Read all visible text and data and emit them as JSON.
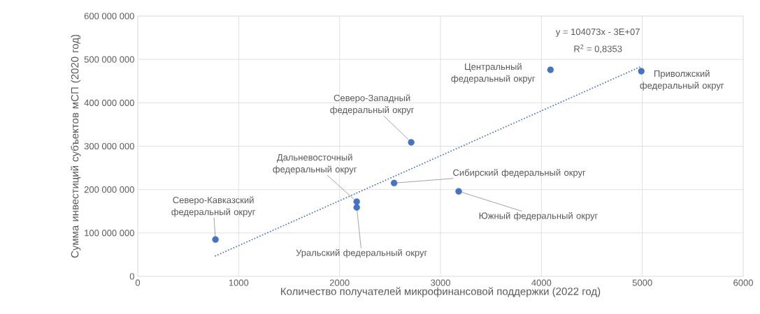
{
  "chart_data": {
    "type": "scatter",
    "xlabel": "Количество получателей микрофинансовой поддержки (2022 год)",
    "ylabel": "Сумма инвестиций субъектов мСП (2020 год)",
    "xlim": [
      0,
      6000
    ],
    "xticks": [
      0,
      1000,
      2000,
      3000,
      4000,
      5000,
      6000
    ],
    "ylim": [
      0,
      600000000
    ],
    "yticks": [
      {
        "value": 0,
        "label": "0"
      },
      {
        "value": 100000000,
        "label": "100 000 000"
      },
      {
        "value": 200000000,
        "label": "200 000 000"
      },
      {
        "value": 300000000,
        "label": "300 000 000"
      },
      {
        "value": 400000000,
        "label": "400 000 000"
      },
      {
        "value": 500000000,
        "label": "500 000 000"
      },
      {
        "value": 600000000,
        "label": "600 000 000"
      }
    ],
    "grid": true,
    "series": [
      {
        "color": "#4472c4",
        "marker": "circle",
        "x": [
          770,
          2170,
          2170,
          2540,
          2710,
          3180,
          4090,
          4990
        ],
        "values": [
          85000000,
          159000000,
          172000000,
          215000000,
          309000000,
          196000000,
          476000000,
          473000000
        ]
      },
      {
        "type": "line",
        "color": "#4472c4",
        "marker": "none",
        "line_style": "dotted",
        "x": [
          770,
          4990
        ],
        "values": [
          47000000,
          484000000
        ]
      }
    ],
    "annotations": [
      {
        "text": "Северо-Кавказский федеральный округ",
        "x": 770,
        "y": 85000000
      },
      {
        "text": "Уральский федеральный округ",
        "x": 2170,
        "y": 159000000
      },
      {
        "text": "Дальневосточный федеральный округ",
        "x": 2170,
        "y": 172000000
      },
      {
        "text": "Сибирский федеральный округ",
        "x": 2540,
        "y": 215000000
      },
      {
        "text": "Северо-Западный федеральный округ",
        "x": 2710,
        "y": 309000000
      },
      {
        "text": "Южный федеральный округ",
        "x": 3180,
        "y": 196000000
      },
      {
        "text": "Центральный федеральный округ",
        "x": 4090,
        "y": 476000000
      },
      {
        "text": "Приволжский федеральный округ",
        "x": 4990,
        "y": 473000000
      },
      "y = 104073x - 3E+07",
      "R$^{2}$ = 0,8353"
    ]
  }
}
